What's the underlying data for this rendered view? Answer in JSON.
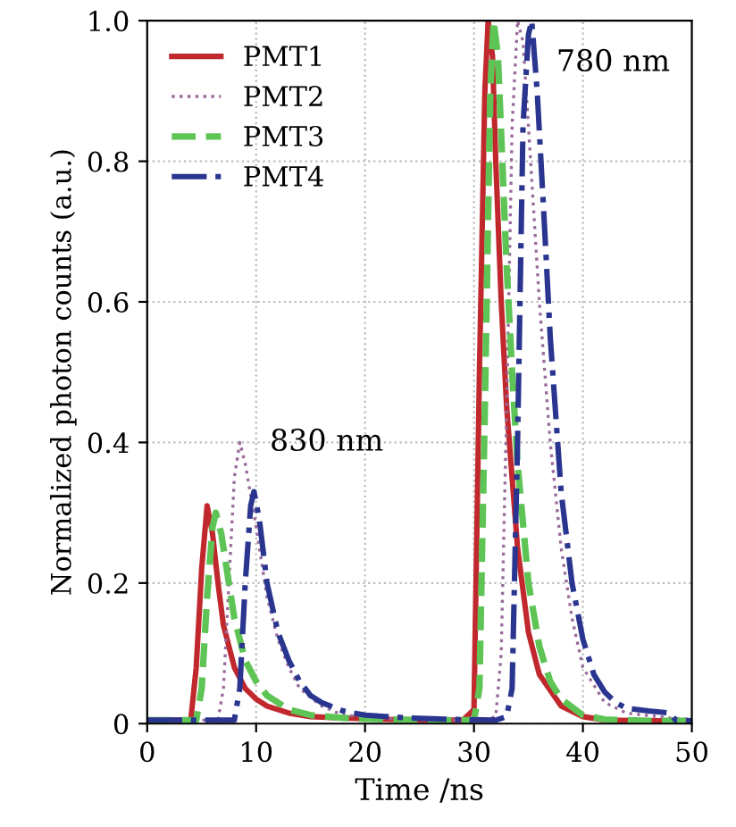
{
  "chart_data": {
    "type": "line",
    "xlabel": "Time /ns",
    "ylabel": "Normalized photon counts (a.u.)",
    "xlim": [
      0,
      50
    ],
    "ylim": [
      0,
      1.0
    ],
    "xticks": [
      0,
      10,
      20,
      30,
      40,
      50
    ],
    "yticks": [
      0,
      0.2,
      0.4,
      0.6,
      0.8,
      {
        "value": 1.0,
        "label": "1.0"
      }
    ],
    "grid": true,
    "legend": "top left",
    "annotations": [
      "830 nm",
      "780 nm"
    ],
    "series": [
      {
        "name": "PMT1",
        "color": "#c0282d",
        "line_style": "solid",
        "x": [
          0,
          4,
          4.5,
          5,
          5.5,
          6,
          6.5,
          7,
          8,
          9,
          10,
          11,
          13,
          15,
          18,
          22,
          26,
          29,
          30,
          30.5,
          31,
          31.3,
          31.7,
          32,
          32.5,
          33,
          34,
          35,
          36,
          38,
          40,
          42,
          46,
          50
        ],
        "values": [
          0.005,
          0.005,
          0.08,
          0.22,
          0.31,
          0.27,
          0.2,
          0.14,
          0.08,
          0.05,
          0.035,
          0.025,
          0.015,
          0.01,
          0.008,
          0.006,
          0.005,
          0.005,
          0.02,
          0.5,
          0.9,
          1.0,
          0.95,
          0.8,
          0.6,
          0.45,
          0.25,
          0.13,
          0.07,
          0.025,
          0.01,
          0.005,
          0.004,
          0.004
        ]
      },
      {
        "name": "PMT2",
        "color": "#9a6a9a",
        "line_style": "dotted",
        "x": [
          0,
          6.5,
          7,
          7.5,
          8,
          8.5,
          9,
          10,
          11,
          12,
          13,
          14,
          16,
          18,
          22,
          26,
          31,
          32,
          32.5,
          33,
          33.5,
          34,
          34.5,
          35,
          36,
          37,
          38,
          39,
          40,
          42,
          44,
          48,
          50
        ],
        "values": [
          0.005,
          0.005,
          0.05,
          0.2,
          0.35,
          0.4,
          0.37,
          0.28,
          0.18,
          0.12,
          0.08,
          0.05,
          0.025,
          0.012,
          0.007,
          0.005,
          0.005,
          0.01,
          0.1,
          0.45,
          0.85,
          1.0,
          0.97,
          0.85,
          0.6,
          0.4,
          0.25,
          0.15,
          0.08,
          0.03,
          0.015,
          0.008,
          0.006
        ]
      },
      {
        "name": "PMT3",
        "color": "#5ec455",
        "line_style": "dashed",
        "x": [
          0,
          4.5,
          5,
          5.5,
          6,
          6.3,
          6.8,
          7.5,
          8,
          9,
          10,
          11,
          13,
          15,
          18,
          22,
          26,
          30,
          30.5,
          31,
          31.5,
          31.8,
          32.2,
          32.6,
          33,
          33.5,
          34,
          35,
          36,
          37,
          38,
          40,
          42,
          46,
          50
        ],
        "values": [
          0.005,
          0.005,
          0.05,
          0.18,
          0.28,
          0.3,
          0.27,
          0.2,
          0.15,
          0.09,
          0.06,
          0.04,
          0.02,
          0.012,
          0.008,
          0.006,
          0.005,
          0.005,
          0.05,
          0.45,
          0.9,
          1.0,
          0.95,
          0.8,
          0.65,
          0.5,
          0.37,
          0.2,
          0.11,
          0.06,
          0.035,
          0.012,
          0.006,
          0.004,
          0.004
        ]
      },
      {
        "name": "PMT4",
        "color": "#2a3590",
        "line_style": "dashdot",
        "x": [
          0,
          8,
          8.5,
          9,
          9.5,
          9.8,
          10.3,
          11,
          12,
          13,
          14,
          15,
          16,
          18,
          20,
          24,
          28,
          32,
          33,
          33.5,
          34,
          34.5,
          35,
          35.3,
          35.8,
          36.5,
          37,
          38,
          39,
          40,
          41,
          42,
          43,
          44,
          46,
          48,
          48.5,
          50
        ],
        "values": [
          0.005,
          0.005,
          0.05,
          0.2,
          0.31,
          0.33,
          0.29,
          0.2,
          0.13,
          0.09,
          0.06,
          0.04,
          0.03,
          0.018,
          0.012,
          0.008,
          0.006,
          0.005,
          0.01,
          0.05,
          0.4,
          0.85,
          0.98,
          1.0,
          0.9,
          0.7,
          0.55,
          0.33,
          0.2,
          0.12,
          0.07,
          0.045,
          0.03,
          0.022,
          0.018,
          0.015,
          0.005,
          0.004
        ]
      }
    ]
  }
}
